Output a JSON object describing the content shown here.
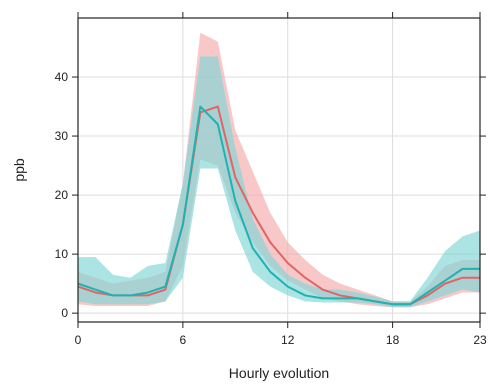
{
  "chart_data": {
    "type": "line",
    "title": "",
    "xlabel": "Hourly evolution",
    "ylabel": "ppb",
    "xlim": [
      0,
      23
    ],
    "ylim": [
      -1.5,
      50
    ],
    "xticks": [
      0,
      6,
      12,
      18,
      23
    ],
    "yticks": [
      0,
      10,
      20,
      30,
      40
    ],
    "grid": true,
    "legend": "none",
    "x": [
      0,
      1,
      2,
      3,
      4,
      5,
      6,
      7,
      8,
      9,
      10,
      11,
      12,
      13,
      14,
      15,
      16,
      17,
      18,
      19,
      20,
      21,
      22,
      23
    ],
    "series": [
      {
        "color": "#e06666",
        "band_color": "#f4aaaa",
        "values": [
          4.5,
          3.5,
          3,
          3,
          3,
          4,
          15,
          34,
          35,
          23,
          17,
          12,
          8.5,
          6,
          4,
          3,
          2.5,
          2,
          1.5,
          1.5,
          3,
          5,
          6,
          6
        ],
        "lower": [
          1.5,
          1.2,
          1.2,
          1.2,
          1.2,
          2,
          8,
          26,
          25,
          17,
          12,
          8,
          5.5,
          4,
          2.5,
          2,
          1.5,
          1.2,
          1,
          1,
          1.5,
          2.5,
          3.5,
          3.5
        ],
        "upper": [
          7,
          6,
          5,
          5.5,
          6,
          7,
          22,
          47.5,
          46,
          31,
          24,
          17,
          12,
          9,
          6.5,
          5,
          4,
          3,
          2,
          2,
          4.5,
          8,
          9,
          9
        ]
      },
      {
        "color": "#20b2b2",
        "band_color": "#7fd6d6",
        "values": [
          5,
          4,
          3,
          3,
          3.5,
          4.5,
          15,
          35,
          32,
          19,
          11,
          7,
          4.5,
          3,
          2.5,
          2.5,
          2.5,
          2,
          1.5,
          1.5,
          3.5,
          5.5,
          7.5,
          7.5
        ],
        "lower": [
          2,
          1.5,
          1.5,
          1.5,
          1.5,
          2,
          6,
          24.5,
          24.5,
          14,
          7,
          4.5,
          3,
          2,
          1.8,
          1.8,
          1.8,
          1.5,
          1,
          1,
          2,
          3,
          4,
          3.5
        ],
        "upper": [
          9.5,
          9.5,
          6.5,
          6,
          8,
          8.5,
          22,
          43.5,
          43.5,
          28,
          16,
          10,
          6.5,
          5,
          4,
          4,
          3.5,
          2.8,
          2,
          2,
          6,
          10.5,
          13,
          14
        ]
      }
    ]
  }
}
